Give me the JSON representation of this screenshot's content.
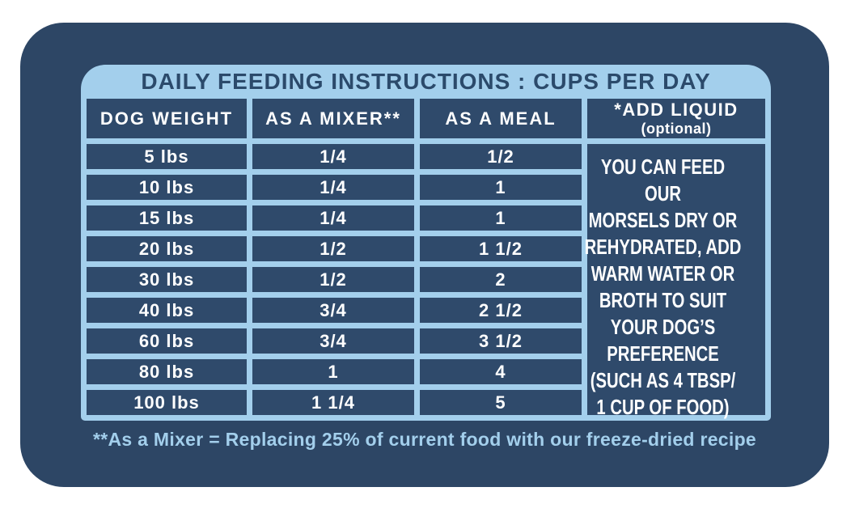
{
  "title": "DAILY FEEDING INSTRUCTIONS : CUPS PER DAY",
  "table": {
    "headers": {
      "weight": "DOG WEIGHT",
      "mixer": "AS A MIXER**",
      "meal": "AS A MEAL",
      "liquid": "*ADD LIQUID",
      "liquid_sub": "(optional)"
    },
    "rows": [
      {
        "weight": "5 lbs",
        "mixer": "1/4",
        "meal": "1/2"
      },
      {
        "weight": "10 lbs",
        "mixer": "1/4",
        "meal": "1"
      },
      {
        "weight": "15 lbs",
        "mixer": "1/4",
        "meal": "1"
      },
      {
        "weight": "20 lbs",
        "mixer": "1/2",
        "meal": "1 1/2"
      },
      {
        "weight": "30 lbs",
        "mixer": "1/2",
        "meal": "2"
      },
      {
        "weight": "40 lbs",
        "mixer": "3/4",
        "meal": "2 1/2"
      },
      {
        "weight": "60 lbs",
        "mixer": "3/4",
        "meal": "3 1/2"
      },
      {
        "weight": "80 lbs",
        "mixer": "1",
        "meal": "4"
      },
      {
        "weight": "100 lbs",
        "mixer": "1 1/4",
        "meal": "5"
      }
    ],
    "liquid_note": "YOU CAN FEED OUR\nMORSELS DRY OR\nREHYDRATED, ADD\nWARM WATER OR\nBROTH TO SUIT\nYOUR DOG’S\nPREFERENCE\n(SUCH AS 4 TBSP/\n1 CUP OF FOOD)"
  },
  "footnote": "**As a Mixer = Replacing 25% of current food with our freeze-dried recipe",
  "colors": {
    "card_navy": "#2d4665",
    "cell_navy": "#2f4a6b",
    "light_blue": "#a3cfec",
    "title_navy": "#2b4a6b",
    "cell_text": "#ffffff",
    "page_background": "#ffffff"
  },
  "chart_data": {
    "type": "table",
    "title": "DAILY FEEDING INSTRUCTIONS : CUPS PER DAY",
    "columns": [
      "DOG WEIGHT",
      "AS A MIXER**",
      "AS A MEAL",
      "*ADD LIQUID (optional)"
    ],
    "rows": [
      [
        "5 lbs",
        "1/4",
        "1/2"
      ],
      [
        "10 lbs",
        "1/4",
        "1"
      ],
      [
        "15 lbs",
        "1/4",
        "1"
      ],
      [
        "20 lbs",
        "1/2",
        "1 1/2"
      ],
      [
        "30 lbs",
        "1/2",
        "2"
      ],
      [
        "40 lbs",
        "3/4",
        "2 1/2"
      ],
      [
        "60 lbs",
        "3/4",
        "3 1/2"
      ],
      [
        "80 lbs",
        "1",
        "4"
      ],
      [
        "100 lbs",
        "1 1/4",
        "5"
      ]
    ],
    "add_liquid_note": "YOU CAN FEED OUR MORSELS DRY OR REHYDRATED, ADD WARM WATER OR BROTH TO SUIT YOUR DOG’S PREFERENCE (SUCH AS 4 TBSP/ 1 CUP OF FOOD)",
    "footnote": "**As a Mixer = Replacing 25% of current food with our freeze-dried recipe",
    "layout_hints": {
      "header_fill": "light-blue",
      "cell_fill": "navy",
      "grid": "on"
    }
  }
}
